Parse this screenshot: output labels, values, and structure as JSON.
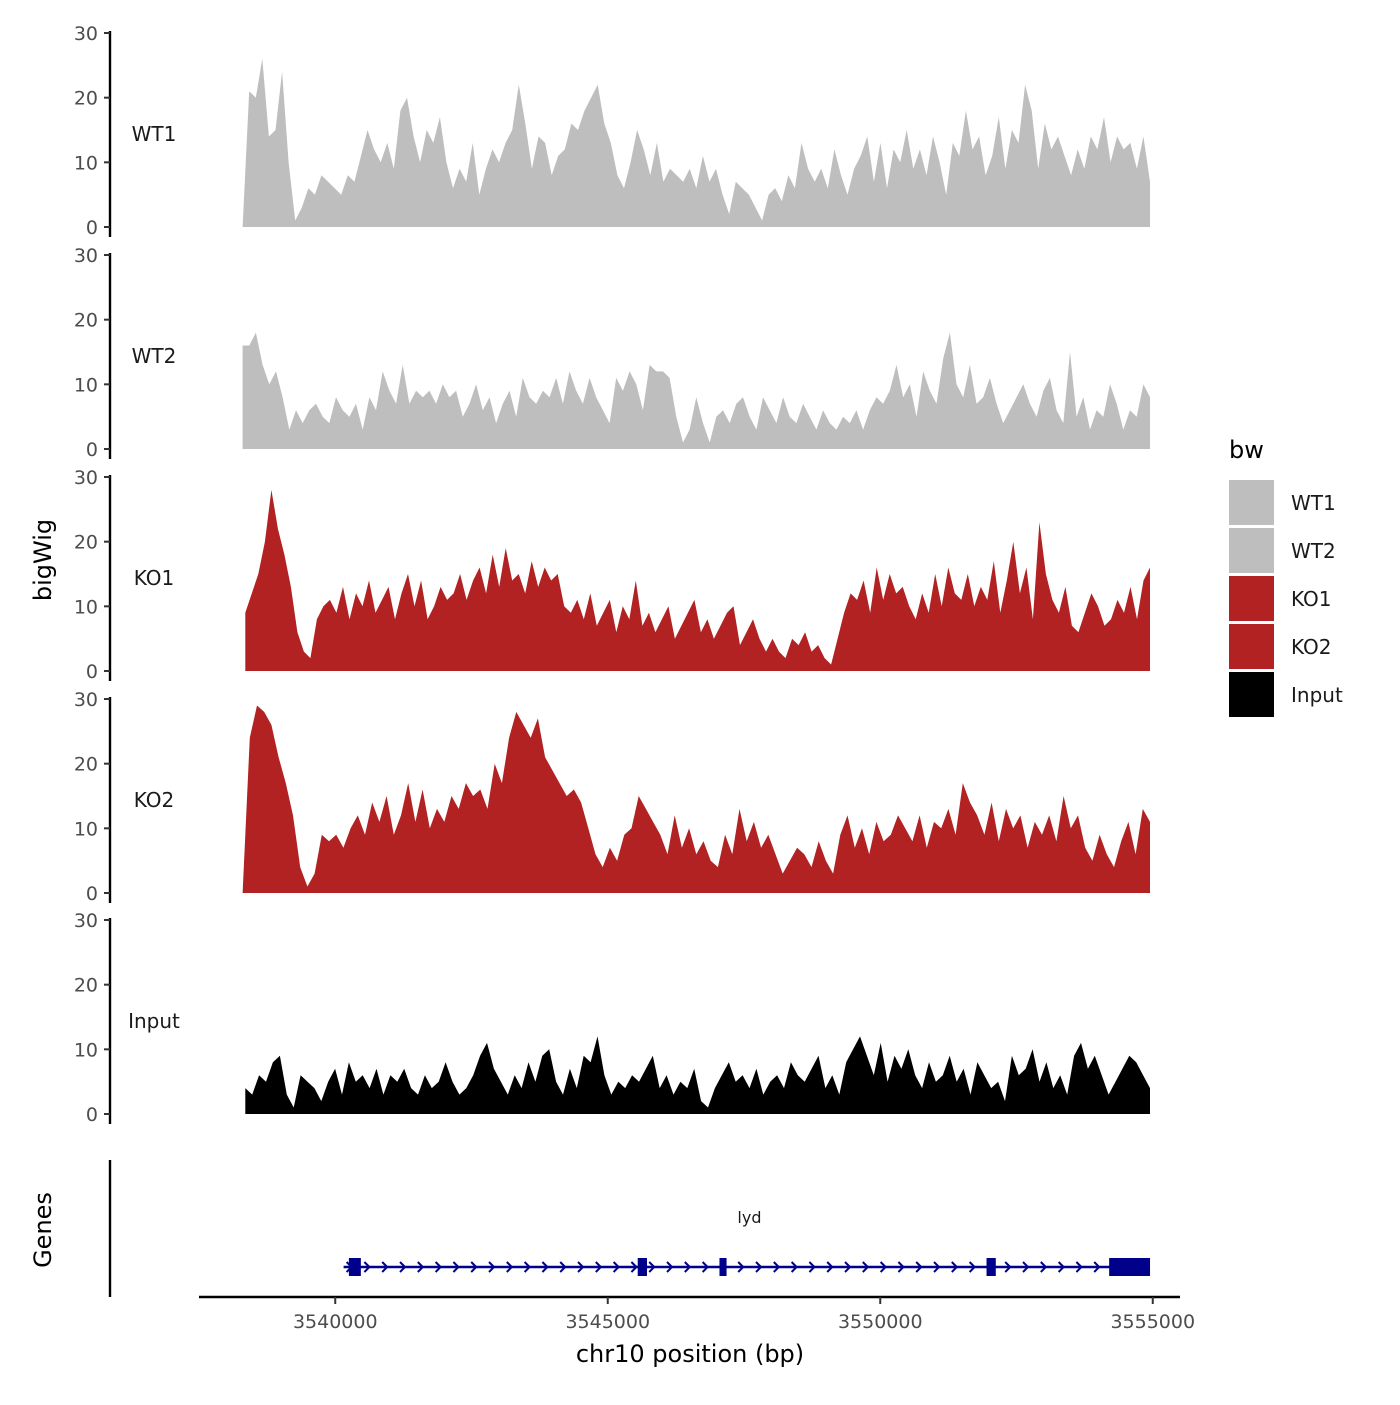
{
  "chart_data": {
    "type": "area",
    "title": "",
    "ylabel": "bigWig",
    "xlabel": "chr10 position (bp)",
    "genes_label": "Genes",
    "x_range": [
      3537500,
      3555500
    ],
    "x_ticks": [
      3540000,
      3545000,
      3550000,
      3555000
    ],
    "x_tick_labels": [
      "3540000",
      "3545000",
      "3550000",
      "3555000"
    ],
    "y_range": [
      0,
      30
    ],
    "y_ticks": [
      0,
      10,
      20,
      30
    ],
    "y_tick_labels": [
      "0",
      "10",
      "20",
      "30"
    ],
    "legend": {
      "title": "bw",
      "entries": [
        {
          "label": "WT1",
          "color": "#bebebe"
        },
        {
          "label": "WT2",
          "color": "#bebebe"
        },
        {
          "label": "KO1",
          "color": "#b22222"
        },
        {
          "label": "KO2",
          "color": "#b22222"
        },
        {
          "label": "Input",
          "color": "#000000"
        }
      ]
    },
    "series": [
      {
        "name": "WT1",
        "color": "#bebebe",
        "x_start": 3538300,
        "x_end": 3554950,
        "values": [
          0,
          21,
          20,
          26,
          14,
          15,
          24,
          10,
          1,
          3,
          6,
          5,
          8,
          7,
          6,
          5,
          8,
          7,
          11,
          15,
          12,
          10,
          13,
          9,
          18,
          20,
          14,
          10,
          15,
          13,
          17,
          10,
          6,
          9,
          7,
          13,
          5,
          9,
          12,
          10,
          13,
          15,
          22,
          16,
          9,
          14,
          13,
          8,
          11,
          12,
          16,
          15,
          18,
          20,
          22,
          16,
          13,
          8,
          6,
          10,
          15,
          12,
          8,
          13,
          7,
          9,
          8,
          7,
          9,
          6,
          11,
          7,
          9,
          5,
          2,
          7,
          6,
          5,
          3,
          1,
          5,
          6,
          4,
          8,
          6,
          13,
          9,
          7,
          9,
          6,
          12,
          8,
          5,
          9,
          11,
          14,
          7,
          13,
          6,
          12,
          10,
          15,
          9,
          12,
          8,
          14,
          10,
          5,
          13,
          11,
          18,
          12,
          14,
          8,
          11,
          17,
          9,
          15,
          13,
          22,
          18,
          9,
          16,
          12,
          14,
          11,
          8,
          12,
          9,
          14,
          12,
          17,
          10,
          14,
          12,
          13,
          9,
          14,
          7
        ]
      },
      {
        "name": "WT2",
        "color": "#bebebe",
        "x_start": 3538300,
        "x_end": 3554950,
        "values": [
          16,
          16,
          18,
          13,
          10,
          12,
          8,
          3,
          6,
          4,
          6,
          7,
          5,
          4,
          8,
          6,
          5,
          7,
          3,
          8,
          6,
          12,
          9,
          7,
          13,
          7,
          9,
          8,
          9,
          7,
          10,
          8,
          9,
          5,
          7,
          10,
          6,
          8,
          4,
          7,
          9,
          5,
          11,
          8,
          7,
          9,
          8,
          11,
          7,
          12,
          9,
          7,
          11,
          8,
          6,
          4,
          11,
          9,
          12,
          10,
          6,
          13,
          12,
          12,
          11,
          5,
          1,
          3,
          8,
          4,
          1,
          5,
          6,
          4,
          7,
          8,
          5,
          3,
          8,
          6,
          4,
          8,
          5,
          4,
          7,
          5,
          3,
          6,
          4,
          3,
          5,
          4,
          6,
          3,
          6,
          8,
          7,
          9,
          13,
          8,
          10,
          5,
          12,
          9,
          7,
          14,
          18,
          10,
          8,
          13,
          7,
          8,
          11,
          7,
          4,
          6,
          8,
          10,
          7,
          5,
          9,
          11,
          6,
          4,
          15,
          5,
          8,
          3,
          6,
          5,
          10,
          7,
          3,
          6,
          5,
          10,
          8
        ]
      },
      {
        "name": "KO1",
        "color": "#b22222",
        "x_start": 3538350,
        "x_end": 3554950,
        "values": [
          9,
          12,
          15,
          20,
          28,
          22,
          18,
          13,
          6,
          3,
          2,
          8,
          10,
          11,
          9,
          13,
          8,
          12,
          10,
          14,
          9,
          11,
          13,
          8,
          12,
          15,
          10,
          14,
          8,
          10,
          13,
          11,
          12,
          15,
          11,
          14,
          16,
          12,
          18,
          13,
          19,
          14,
          15,
          12,
          17,
          13,
          16,
          14,
          15,
          10,
          9,
          11,
          8,
          12,
          7,
          9,
          11,
          6,
          10,
          8,
          14,
          7,
          9,
          6,
          8,
          10,
          5,
          7,
          9,
          11,
          6,
          8,
          5,
          7,
          9,
          10,
          4,
          6,
          8,
          5,
          3,
          5,
          3,
          2,
          5,
          4,
          6,
          3,
          4,
          2,
          1,
          5,
          9,
          12,
          11,
          14,
          9,
          16,
          11,
          15,
          12,
          13,
          10,
          8,
          12,
          9,
          15,
          10,
          16,
          12,
          11,
          15,
          10,
          13,
          11,
          17,
          9,
          14,
          20,
          12,
          16,
          8,
          23,
          15,
          11,
          9,
          13,
          7,
          6,
          9,
          12,
          10,
          7,
          8,
          11,
          9,
          13,
          8,
          14,
          16
        ]
      },
      {
        "name": "KO2",
        "color": "#b22222",
        "x_start": 3538300,
        "x_end": 3554950,
        "values": [
          0,
          24,
          29,
          28,
          26,
          21,
          17,
          12,
          4,
          1,
          3,
          9,
          8,
          9,
          7,
          10,
          12,
          9,
          14,
          11,
          15,
          9,
          12,
          17,
          11,
          16,
          10,
          13,
          11,
          15,
          13,
          17,
          15,
          16,
          13,
          20,
          17,
          24,
          28,
          26,
          24,
          27,
          21,
          19,
          17,
          15,
          16,
          14,
          10,
          6,
          4,
          7,
          5,
          9,
          10,
          15,
          13,
          11,
          9,
          6,
          12,
          7,
          10,
          6,
          8,
          5,
          4,
          9,
          6,
          13,
          8,
          11,
          7,
          9,
          6,
          3,
          5,
          7,
          6,
          4,
          8,
          5,
          3,
          9,
          12,
          7,
          10,
          6,
          11,
          8,
          9,
          12,
          10,
          8,
          12,
          7,
          11,
          10,
          13,
          9,
          17,
          14,
          12,
          9,
          14,
          8,
          13,
          10,
          12,
          7,
          11,
          9,
          12,
          8,
          15,
          10,
          12,
          7,
          5,
          9,
          6,
          4,
          8,
          11,
          6,
          13,
          11
        ]
      },
      {
        "name": "Input",
        "color": "#000000",
        "x_start": 3538350,
        "x_end": 3554950,
        "values": [
          4,
          3,
          6,
          5,
          8,
          9,
          3,
          1,
          6,
          5,
          4,
          2,
          5,
          7,
          3,
          8,
          5,
          6,
          4,
          7,
          3,
          6,
          5,
          7,
          4,
          3,
          6,
          4,
          5,
          8,
          5,
          3,
          4,
          6,
          9,
          11,
          7,
          5,
          3,
          6,
          4,
          8,
          5,
          9,
          10,
          5,
          3,
          7,
          4,
          9,
          8,
          12,
          6,
          3,
          5,
          4,
          6,
          5,
          7,
          9,
          4,
          6,
          3,
          5,
          4,
          7,
          2,
          1,
          4,
          6,
          8,
          5,
          6,
          4,
          7,
          3,
          5,
          6,
          4,
          8,
          6,
          5,
          7,
          9,
          4,
          6,
          3,
          8,
          10,
          12,
          9,
          6,
          11,
          5,
          9,
          7,
          10,
          6,
          4,
          8,
          5,
          6,
          9,
          5,
          7,
          3,
          8,
          6,
          4,
          5,
          2,
          9,
          6,
          7,
          10,
          5,
          8,
          4,
          6,
          3,
          9,
          11,
          7,
          9,
          6,
          3,
          5,
          7,
          9,
          8,
          6,
          4
        ]
      }
    ],
    "gene_track": {
      "gene_name": "lyd",
      "color": "#00008b",
      "strand": "+",
      "start": 3540300,
      "end": 3554900,
      "exons": [
        {
          "start": 3540250,
          "end": 3540470
        },
        {
          "start": 3545550,
          "end": 3545720
        },
        {
          "start": 3547050,
          "end": 3547180
        },
        {
          "start": 3551950,
          "end": 3552120
        },
        {
          "start": 3554200,
          "end": 3554950
        }
      ]
    }
  }
}
